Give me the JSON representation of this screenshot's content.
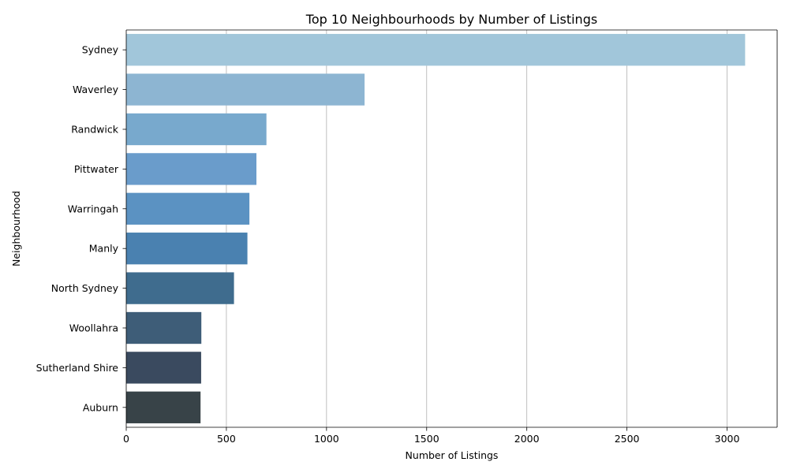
{
  "chart_data": {
    "type": "bar",
    "orientation": "horizontal",
    "title": "Top 10 Neighbourhoods by Number of Listings",
    "xlabel": "Number of Listings",
    "ylabel": "Neighbourhood",
    "categories": [
      "Sydney",
      "Waverley",
      "Randwick",
      "Pittwater",
      "Warringah",
      "Manly",
      "North Sydney",
      "Woollahra",
      "Sutherland Shire",
      "Auburn"
    ],
    "values": [
      3090,
      1190,
      700,
      650,
      615,
      605,
      538,
      375,
      374,
      371
    ],
    "xlim": [
      0,
      3250
    ],
    "xticks": [
      0,
      500,
      1000,
      1500,
      2000,
      2500,
      3000
    ],
    "xtick_labels": [
      "0",
      "500",
      "1000",
      "1500",
      "2000",
      "2500",
      "3000"
    ],
    "grid": "vertical",
    "bar_colors": [
      "#a1c6da",
      "#8db5d2",
      "#78a9cd",
      "#6a9ccb",
      "#5b92c2",
      "#4a81b0",
      "#3f6c8e",
      "#3e5d78",
      "#3a4a5f",
      "#384348"
    ]
  }
}
